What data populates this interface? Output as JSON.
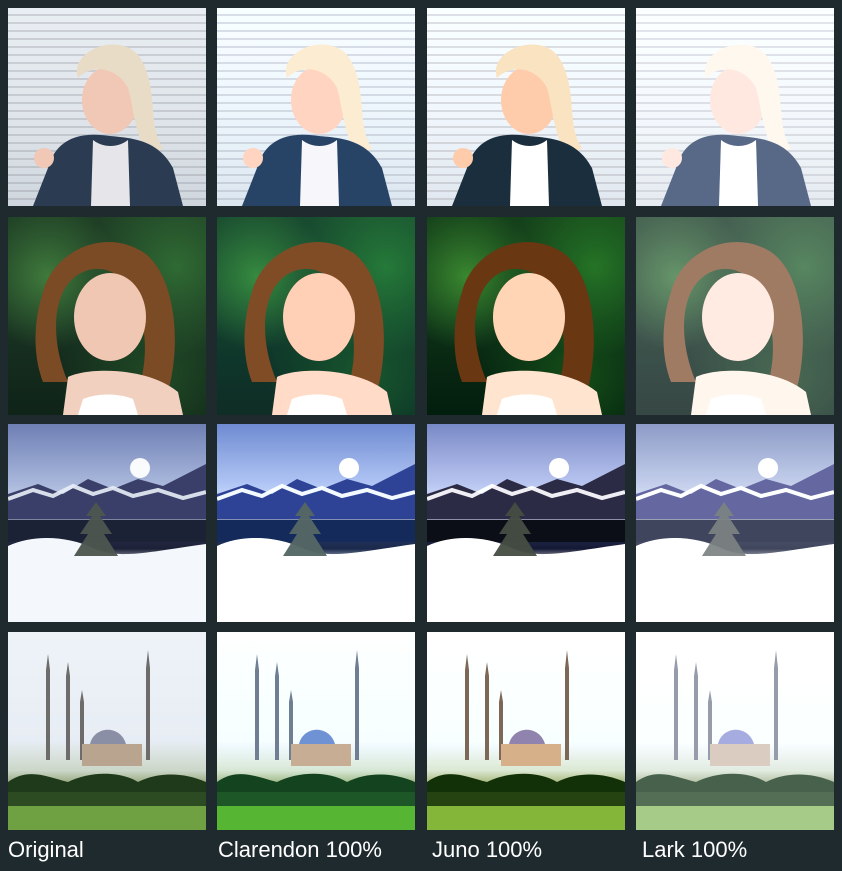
{
  "columns": [
    {
      "label": "Original",
      "filter": "original"
    },
    {
      "label": "Clarendon 100%",
      "filter": "clarendon"
    },
    {
      "label": "Juno 100%",
      "filter": "juno"
    },
    {
      "label": "Lark 100%",
      "filter": "lark"
    }
  ],
  "rows": [
    {
      "scene": "woman-blinds"
    },
    {
      "scene": "woman-leaves"
    },
    {
      "scene": "snowy-mountains"
    },
    {
      "scene": "mosque"
    }
  ],
  "colors": {
    "background": "#1f2a2e",
    "label_text": "#ffffff"
  }
}
